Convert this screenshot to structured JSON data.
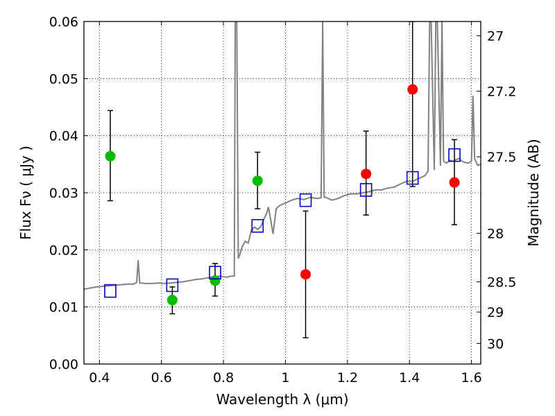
{
  "chart_data": {
    "type": "scatter",
    "xlabel": "Wavelength  λ (μm)",
    "ylabel": "Flux  Fν  ( μJy )",
    "y2label": "Magnitude (AB)",
    "xlim": [
      0.35,
      1.63
    ],
    "ylim": [
      0.0,
      0.06
    ],
    "x_ticks": [
      {
        "value": 0.4,
        "label": "0.4"
      },
      {
        "value": 0.6,
        "label": "0.6"
      },
      {
        "value": 0.8,
        "label": "0.8"
      },
      {
        "value": 1.0,
        "label": "1"
      },
      {
        "value": 1.2,
        "label": "1.2"
      },
      {
        "value": 1.4,
        "label": "1.4"
      },
      {
        "value": 1.6,
        "label": "1.6"
      }
    ],
    "y_ticks": [
      {
        "value": 0.0,
        "label": "0.00"
      },
      {
        "value": 0.01,
        "label": "0.01"
      },
      {
        "value": 0.02,
        "label": "0.02"
      },
      {
        "value": 0.03,
        "label": "0.03"
      },
      {
        "value": 0.04,
        "label": "0.04"
      },
      {
        "value": 0.05,
        "label": "0.05"
      },
      {
        "value": 0.06,
        "label": "0.06"
      }
    ],
    "y2_ticks": [
      {
        "flux": 0.0575,
        "label": "27"
      },
      {
        "flux": 0.0478,
        "label": "27.2"
      },
      {
        "flux": 0.0363,
        "label": "27.5"
      },
      {
        "flux": 0.0229,
        "label": "28"
      },
      {
        "flux": 0.0144,
        "label": "28.5"
      },
      {
        "flux": 0.0091,
        "label": "29"
      },
      {
        "flux": 0.0036,
        "label": "30"
      }
    ],
    "grid": true,
    "colors": {
      "green_points": "#00bb00",
      "red_points": "#ff0000",
      "model_squares": "#0000cc",
      "spectrum": "#808080",
      "error_bars": "#000000"
    },
    "series": [
      {
        "marker": "circle-green",
        "points": [
          {
            "x": 0.435,
            "y": 0.0364,
            "err_low": 0.0286,
            "err_high": 0.0444
          },
          {
            "x": 0.635,
            "y": 0.0112,
            "err_low": 0.0088,
            "err_high": 0.0135
          },
          {
            "x": 0.773,
            "y": 0.0146,
            "err_low": 0.0119,
            "err_high": 0.0176
          },
          {
            "x": 0.91,
            "y": 0.0321,
            "err_low": 0.0272,
            "err_high": 0.0371
          }
        ]
      },
      {
        "marker": "circle-red",
        "points": [
          {
            "x": 1.065,
            "y": 0.0157,
            "err_low": 0.0046,
            "err_high": 0.0268
          },
          {
            "x": 1.26,
            "y": 0.0333,
            "err_low": 0.0261,
            "err_high": 0.0408
          },
          {
            "x": 1.41,
            "y": 0.0481,
            "err_low": 0.0311,
            "err_high": 0.06
          },
          {
            "x": 1.545,
            "y": 0.0318,
            "err_low": 0.0244,
            "err_high": 0.0393
          }
        ]
      },
      {
        "marker": "square-blue",
        "points": [
          {
            "x": 0.435,
            "y": 0.0128
          },
          {
            "x": 0.635,
            "y": 0.0138
          },
          {
            "x": 0.773,
            "y": 0.016
          },
          {
            "x": 0.91,
            "y": 0.0242
          },
          {
            "x": 1.065,
            "y": 0.0287
          },
          {
            "x": 1.26,
            "y": 0.0305
          },
          {
            "x": 1.41,
            "y": 0.0326
          },
          {
            "x": 1.545,
            "y": 0.0366
          }
        ]
      }
    ],
    "spectrum": {
      "x": [
        0.35,
        0.37,
        0.39,
        0.41,
        0.43,
        0.45,
        0.47,
        0.49,
        0.51,
        0.52,
        0.525,
        0.53,
        0.55,
        0.57,
        0.59,
        0.61,
        0.63,
        0.65,
        0.67,
        0.69,
        0.71,
        0.73,
        0.75,
        0.77,
        0.79,
        0.81,
        0.825,
        0.835,
        0.838,
        0.843,
        0.848,
        0.853,
        0.86,
        0.87,
        0.88,
        0.89,
        0.9,
        0.91,
        0.92,
        0.93,
        0.94,
        0.945,
        0.95,
        0.96,
        0.97,
        0.98,
        0.99,
        1.0,
        1.02,
        1.04,
        1.06,
        1.08,
        1.1,
        1.115,
        1.12,
        1.125,
        1.13,
        1.15,
        1.17,
        1.19,
        1.21,
        1.23,
        1.25,
        1.27,
        1.29,
        1.31,
        1.33,
        1.35,
        1.37,
        1.39,
        1.41,
        1.43,
        1.45,
        1.46,
        1.465,
        1.47,
        1.48,
        1.485,
        1.49,
        1.5,
        1.505,
        1.51,
        1.52,
        1.53,
        1.54,
        1.55,
        1.56,
        1.57,
        1.58,
        1.59,
        1.6,
        1.605,
        1.61,
        1.62,
        1.63
      ],
      "y": [
        0.0131,
        0.0133,
        0.0135,
        0.0136,
        0.0137,
        0.0138,
        0.0139,
        0.014,
        0.014,
        0.0143,
        0.0182,
        0.0142,
        0.0141,
        0.0141,
        0.0142,
        0.0141,
        0.0142,
        0.0143,
        0.0144,
        0.0146,
        0.0148,
        0.0149,
        0.0151,
        0.0153,
        0.0154,
        0.0152,
        0.0154,
        0.0154,
        0.06,
        0.06,
        0.0185,
        0.0192,
        0.0205,
        0.0215,
        0.0212,
        0.0234,
        0.024,
        0.0236,
        0.024,
        0.0253,
        0.0265,
        0.0275,
        0.026,
        0.0228,
        0.0272,
        0.0277,
        0.028,
        0.0282,
        0.0287,
        0.029,
        0.0288,
        0.0292,
        0.029,
        0.0291,
        0.06,
        0.0292,
        0.0292,
        0.0287,
        0.029,
        0.0295,
        0.0298,
        0.0298,
        0.03,
        0.0302,
        0.0305,
        0.0305,
        0.0308,
        0.031,
        0.0315,
        0.032,
        0.032,
        0.0325,
        0.033,
        0.0338,
        0.06,
        0.06,
        0.034,
        0.06,
        0.06,
        0.0347,
        0.06,
        0.0355,
        0.0352,
        0.0357,
        0.0355,
        0.0358,
        0.036,
        0.0355,
        0.0353,
        0.0352,
        0.0355,
        0.047,
        0.036,
        0.0348,
        0.035
      ]
    }
  }
}
